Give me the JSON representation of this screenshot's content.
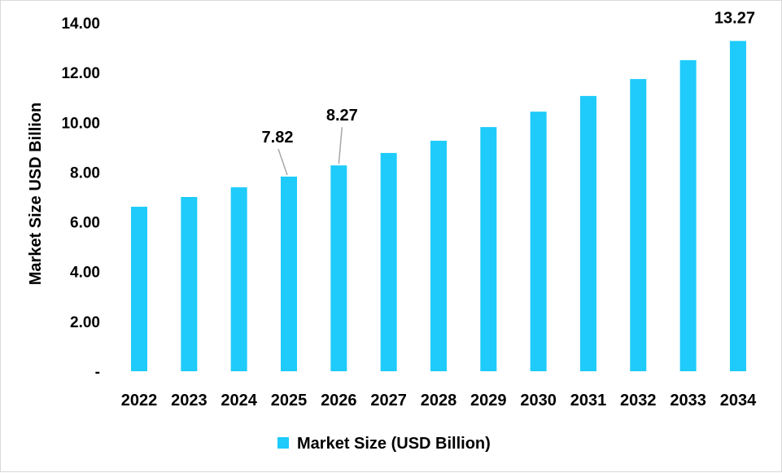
{
  "chart_data": {
    "type": "bar",
    "title": "",
    "xlabel": "",
    "ylabel": "Market Size USD Billion",
    "ylim": [
      0,
      14
    ],
    "yticks": [
      "-",
      "2.00",
      "4.00",
      "6.00",
      "8.00",
      "10.00",
      "12.00",
      "14.00"
    ],
    "categories": [
      "2022",
      "2023",
      "2024",
      "2025",
      "2026",
      "2027",
      "2028",
      "2029",
      "2030",
      "2031",
      "2032",
      "2033",
      "2034"
    ],
    "series": [
      {
        "name": "Market Size (USD Billion)",
        "color": "#1ECBFA",
        "values": [
          6.61,
          7.0,
          7.39,
          7.82,
          8.27,
          8.77,
          9.26,
          9.81,
          10.43,
          11.06,
          11.74,
          12.5,
          13.27
        ]
      }
    ],
    "data_labels": [
      {
        "category": "2025",
        "text": "7.82"
      },
      {
        "category": "2026",
        "text": "8.27"
      },
      {
        "category": "2034",
        "text": "13.27"
      }
    ],
    "grid": false,
    "legend": "bottom"
  }
}
